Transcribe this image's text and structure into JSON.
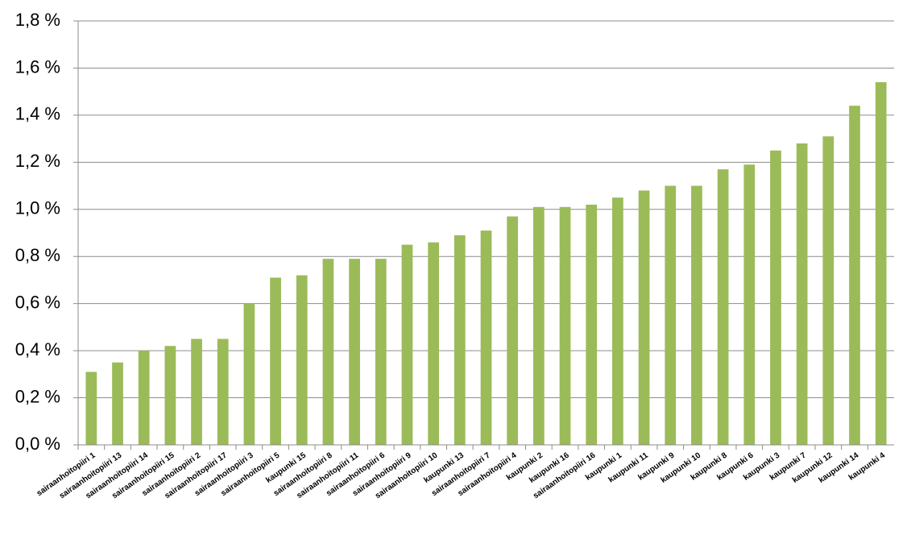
{
  "chart_data": {
    "type": "bar",
    "categories": [
      "sairaanhoitopiiri 1",
      "sairaanhoitopiiri 13",
      "sairaanhoitopiiri 14",
      "sairaanhoitopiiri 15",
      "sairaanhoitopiiri 2",
      "sairaanhoitopiiri 17",
      "sairaanhoitopiiri 3",
      "sairaanhoitopiiri 5",
      "kaupunki 15",
      "sairaanhoitopiiri 8",
      "sairaanhoitopiiri 11",
      "sairaanhoitopiiri 6",
      "sairaanhoitopiiri 9",
      "sairaanhoitopiiri 10",
      "kaupunki 13",
      "sairaanhoitopiiri 7",
      "sairaanhoitopiiri 4",
      "kaupunki 2",
      "kaupunki 16",
      "sairaanhoitopiiri 16",
      "kaupunki 1",
      "kaupunki 11",
      "kaupunki 9",
      "kaupunki 10",
      "kaupunki 8",
      "kaupunki 6",
      "kaupunki 3",
      "kaupunki 7",
      "kaupunki 12",
      "kaupunki 14",
      "kaupunki 4"
    ],
    "values": [
      0.31,
      0.35,
      0.4,
      0.42,
      0.45,
      0.45,
      0.6,
      0.71,
      0.72,
      0.79,
      0.79,
      0.79,
      0.85,
      0.86,
      0.89,
      0.91,
      0.97,
      1.01,
      1.01,
      1.02,
      1.05,
      1.08,
      1.1,
      1.1,
      1.17,
      1.19,
      1.25,
      1.28,
      1.31,
      1.44,
      1.54
    ],
    "color": "#9bbb59",
    "ylim": [
      0,
      1.8
    ],
    "yticks": [
      {
        "value": 0,
        "label": "0,0 %"
      },
      {
        "value": 0.2,
        "label": "0,2 %"
      },
      {
        "value": 0.4,
        "label": "0,4 %"
      },
      {
        "value": 0.6,
        "label": "0,6 %"
      },
      {
        "value": 0.8,
        "label": "0,8 %"
      },
      {
        "value": 1.0,
        "label": "1,0 %"
      },
      {
        "value": 1.2,
        "label": "1,2 %"
      },
      {
        "value": 1.4,
        "label": "1,4 %"
      },
      {
        "value": 1.6,
        "label": "1,6 %"
      },
      {
        "value": 1.8,
        "label": "1,8 %"
      }
    ],
    "grid": true
  }
}
